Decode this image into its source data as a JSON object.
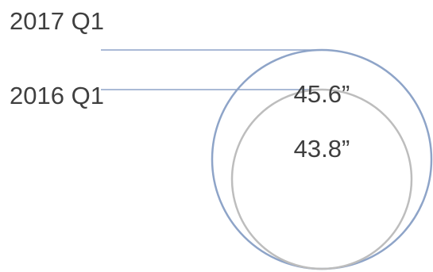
{
  "chart_data": {
    "type": "bubble",
    "title": "",
    "series": [
      {
        "label": "2017 Q1",
        "value": 45.6,
        "value_label": "45.6”",
        "color": "#8ea4c8"
      },
      {
        "label": "2016 Q1",
        "value": 43.8,
        "value_label": "43.8”",
        "color": "#bdbdbd"
      }
    ]
  }
}
